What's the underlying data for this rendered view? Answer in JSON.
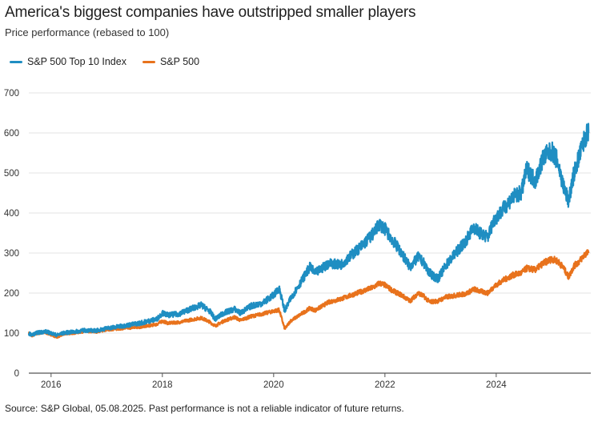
{
  "title": "America's biggest companies have outstripped smaller players",
  "subtitle": "Price performance (rebased to 100)",
  "source_prefix": "Source: S&P Global, 05.08.2025.",
  "source_disclaimer": "Past performance is not a reliable indicator of future returns.",
  "colors": {
    "top10": "#1f8ec2",
    "sp500": "#e8721c",
    "grid": "#e3e3e3",
    "axis": "#555555"
  },
  "chart_data": {
    "type": "line",
    "title": "America's biggest companies have outstripped smaller players",
    "subtitle": "Price performance (rebased to 100)",
    "xlabel": "",
    "ylabel": "",
    "xlim": [
      2015.6,
      2025.7
    ],
    "ylim": [
      0,
      700
    ],
    "yticks": [
      0,
      100,
      200,
      300,
      400,
      500,
      600,
      700
    ],
    "xticks": [
      2016,
      2018,
      2020,
      2022,
      2024
    ],
    "xtick_labels": [
      "2016",
      "2018",
      "2020",
      "2022",
      "2024"
    ],
    "ytick_labels": [
      "0",
      "100",
      "200",
      "300",
      "400",
      "500",
      "600",
      "700"
    ],
    "grid": true,
    "legend": "top-left",
    "series": [
      {
        "name": "S&P 500 Top 10 Index",
        "color": "#1f8ec2",
        "points": [
          [
            2015.6,
            100
          ],
          [
            2015.65,
            95
          ],
          [
            2015.75,
            101
          ],
          [
            2015.9,
            104
          ],
          [
            2016.0,
            100
          ],
          [
            2016.1,
            95
          ],
          [
            2016.25,
            101
          ],
          [
            2016.4,
            103
          ],
          [
            2016.6,
            107
          ],
          [
            2016.8,
            106
          ],
          [
            2017.0,
            112
          ],
          [
            2017.3,
            118
          ],
          [
            2017.6,
            125
          ],
          [
            2017.9,
            135
          ],
          [
            2018.0,
            150
          ],
          [
            2018.1,
            145
          ],
          [
            2018.3,
            148
          ],
          [
            2018.5,
            160
          ],
          [
            2018.7,
            170
          ],
          [
            2018.85,
            155
          ],
          [
            2018.95,
            135
          ],
          [
            2019.1,
            150
          ],
          [
            2019.3,
            160
          ],
          [
            2019.4,
            150
          ],
          [
            2019.6,
            168
          ],
          [
            2019.8,
            175
          ],
          [
            2020.0,
            195
          ],
          [
            2020.1,
            212
          ],
          [
            2020.2,
            155
          ],
          [
            2020.3,
            185
          ],
          [
            2020.5,
            230
          ],
          [
            2020.65,
            265
          ],
          [
            2020.75,
            250
          ],
          [
            2020.9,
            265
          ],
          [
            2021.0,
            275
          ],
          [
            2021.2,
            270
          ],
          [
            2021.4,
            295
          ],
          [
            2021.6,
            320
          ],
          [
            2021.8,
            350
          ],
          [
            2021.9,
            372
          ],
          [
            2022.0,
            360
          ],
          [
            2022.15,
            330
          ],
          [
            2022.3,
            300
          ],
          [
            2022.45,
            265
          ],
          [
            2022.6,
            290
          ],
          [
            2022.7,
            275
          ],
          [
            2022.8,
            250
          ],
          [
            2022.95,
            235
          ],
          [
            2023.1,
            270
          ],
          [
            2023.3,
            305
          ],
          [
            2023.45,
            330
          ],
          [
            2023.6,
            365
          ],
          [
            2023.7,
            350
          ],
          [
            2023.85,
            340
          ],
          [
            2023.95,
            380
          ],
          [
            2024.1,
            405
          ],
          [
            2024.3,
            440
          ],
          [
            2024.45,
            450
          ],
          [
            2024.55,
            510
          ],
          [
            2024.7,
            480
          ],
          [
            2024.85,
            540
          ],
          [
            2025.0,
            555
          ],
          [
            2025.1,
            530
          ],
          [
            2025.2,
            470
          ],
          [
            2025.3,
            430
          ],
          [
            2025.4,
            500
          ],
          [
            2025.5,
            545
          ],
          [
            2025.6,
            590
          ],
          [
            2025.66,
            600
          ]
        ]
      },
      {
        "name": "S&P 500",
        "color": "#e8721c",
        "points": [
          [
            2015.6,
            100
          ],
          [
            2015.65,
            93
          ],
          [
            2015.75,
            99
          ],
          [
            2015.9,
            101
          ],
          [
            2016.0,
            96
          ],
          [
            2016.1,
            90
          ],
          [
            2016.25,
            98
          ],
          [
            2016.4,
            100
          ],
          [
            2016.6,
            104
          ],
          [
            2016.8,
            103
          ],
          [
            2017.0,
            108
          ],
          [
            2017.3,
            112
          ],
          [
            2017.6,
            115
          ],
          [
            2017.9,
            122
          ],
          [
            2018.0,
            130
          ],
          [
            2018.1,
            125
          ],
          [
            2018.3,
            127
          ],
          [
            2018.5,
            133
          ],
          [
            2018.7,
            138
          ],
          [
            2018.85,
            128
          ],
          [
            2018.95,
            118
          ],
          [
            2019.1,
            130
          ],
          [
            2019.3,
            140
          ],
          [
            2019.4,
            132
          ],
          [
            2019.6,
            142
          ],
          [
            2019.8,
            148
          ],
          [
            2020.0,
            155
          ],
          [
            2020.1,
            158
          ],
          [
            2020.2,
            110
          ],
          [
            2020.3,
            130
          ],
          [
            2020.5,
            148
          ],
          [
            2020.65,
            162
          ],
          [
            2020.75,
            157
          ],
          [
            2020.9,
            170
          ],
          [
            2021.0,
            178
          ],
          [
            2021.2,
            185
          ],
          [
            2021.4,
            195
          ],
          [
            2021.6,
            205
          ],
          [
            2021.8,
            215
          ],
          [
            2021.9,
            225
          ],
          [
            2022.0,
            220
          ],
          [
            2022.15,
            205
          ],
          [
            2022.3,
            195
          ],
          [
            2022.45,
            180
          ],
          [
            2022.6,
            200
          ],
          [
            2022.7,
            192
          ],
          [
            2022.8,
            178
          ],
          [
            2022.95,
            180
          ],
          [
            2023.1,
            190
          ],
          [
            2023.3,
            195
          ],
          [
            2023.45,
            198
          ],
          [
            2023.6,
            210
          ],
          [
            2023.7,
            205
          ],
          [
            2023.85,
            200
          ],
          [
            2023.95,
            215
          ],
          [
            2024.1,
            230
          ],
          [
            2024.3,
            245
          ],
          [
            2024.45,
            250
          ],
          [
            2024.55,
            262
          ],
          [
            2024.7,
            258
          ],
          [
            2024.85,
            275
          ],
          [
            2025.0,
            285
          ],
          [
            2025.1,
            280
          ],
          [
            2025.2,
            265
          ],
          [
            2025.3,
            240
          ],
          [
            2025.4,
            268
          ],
          [
            2025.5,
            280
          ],
          [
            2025.6,
            298
          ],
          [
            2025.66,
            300
          ]
        ]
      }
    ]
  }
}
